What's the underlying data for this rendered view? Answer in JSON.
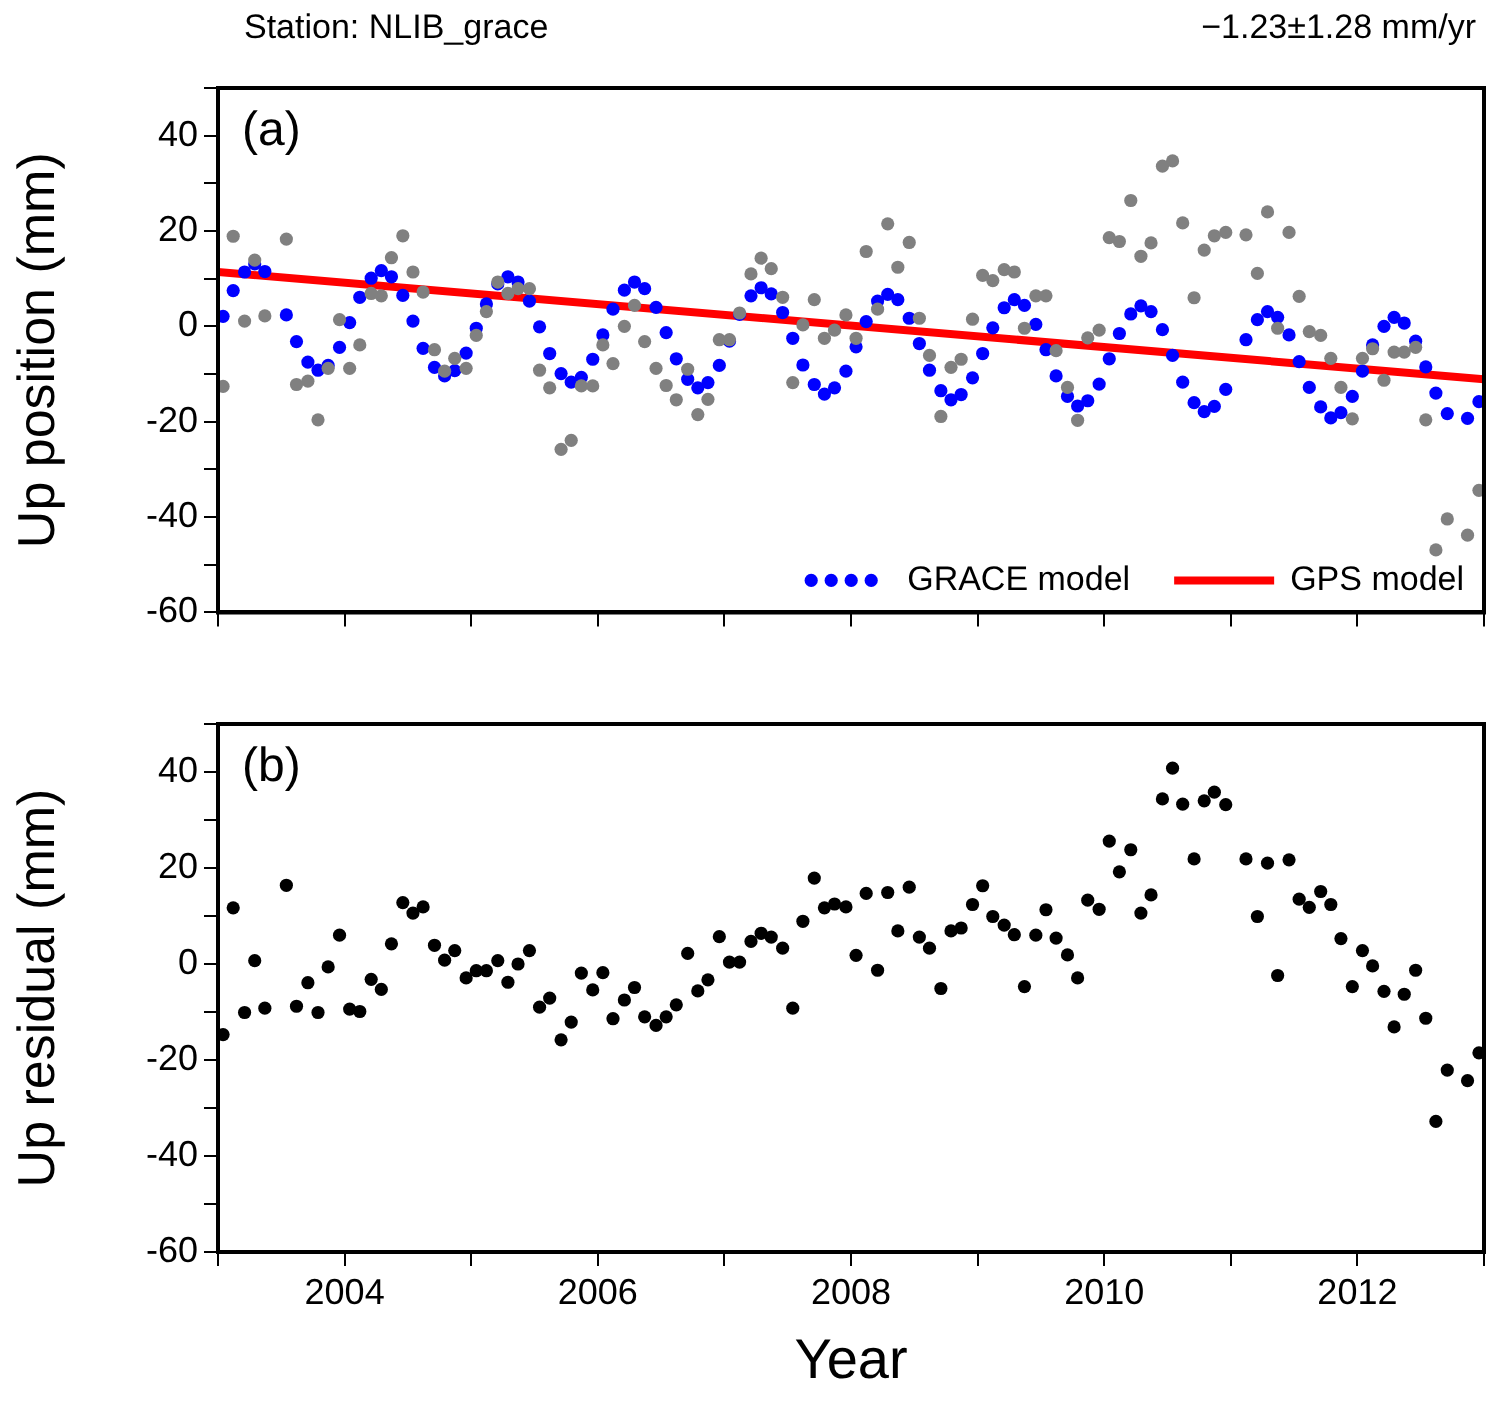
{
  "chart_data": [
    {
      "type": "scatter",
      "title": "Station: NLIB_grace",
      "subtitle": "−1.23±1.28 mm/yr",
      "ylabel": "Up position (mm)",
      "annotations": [
        "(a)"
      ],
      "marker": "circle",
      "legend": "bottom right",
      "tick_labels": "y",
      "xlim": [
        2003,
        2013
      ],
      "xticks": [
        {
          "value": 2003,
          "label": null
        },
        2004,
        {
          "value": 2005,
          "label": null
        },
        2006,
        {
          "value": 2007,
          "label": null
        },
        2008,
        {
          "value": 2009,
          "label": null
        },
        2010,
        {
          "value": 2011,
          "label": null
        },
        2012,
        {
          "value": 2013,
          "label": null
        }
      ],
      "ylim": [
        -60,
        50
      ],
      "yticks": [
        -60,
        {
          "value": -50,
          "label": null
        },
        -40,
        {
          "value": -30,
          "label": null
        },
        -20,
        {
          "value": -10,
          "label": null
        },
        0,
        {
          "value": 10,
          "label": null
        },
        20,
        {
          "value": 30,
          "label": null
        },
        40,
        {
          "value": 50,
          "label": null
        }
      ],
      "x": [
        2003.04,
        2003.12,
        2003.21,
        2003.29,
        2003.37,
        2003.54,
        2003.62,
        2003.71,
        2003.79,
        2003.87,
        2003.96,
        2004.04,
        2004.12,
        2004.21,
        2004.29,
        2004.37,
        2004.46,
        2004.54,
        2004.62,
        2004.71,
        2004.79,
        2004.87,
        2004.96,
        2005.04,
        2005.12,
        2005.21,
        2005.29,
        2005.37,
        2005.46,
        2005.54,
        2005.62,
        2005.71,
        2005.79,
        2005.87,
        2005.96,
        2006.04,
        2006.12,
        2006.21,
        2006.29,
        2006.37,
        2006.46,
        2006.54,
        2006.62,
        2006.71,
        2006.79,
        2006.87,
        2006.96,
        2007.04,
        2007.12,
        2007.21,
        2007.29,
        2007.37,
        2007.46,
        2007.54,
        2007.62,
        2007.71,
        2007.79,
        2007.87,
        2007.96,
        2008.04,
        2008.12,
        2008.21,
        2008.29,
        2008.37,
        2008.46,
        2008.54,
        2008.62,
        2008.71,
        2008.79,
        2008.87,
        2008.96,
        2009.04,
        2009.12,
        2009.21,
        2009.29,
        2009.37,
        2009.46,
        2009.54,
        2009.62,
        2009.71,
        2009.79,
        2009.87,
        2009.96,
        2010.04,
        2010.12,
        2010.21,
        2010.29,
        2010.37,
        2010.46,
        2010.54,
        2010.62,
        2010.71,
        2010.79,
        2010.87,
        2010.96,
        2011.12,
        2011.21,
        2011.29,
        2011.37,
        2011.46,
        2011.54,
        2011.62,
        2011.71,
        2011.79,
        2011.87,
        2011.96,
        2012.04,
        2012.12,
        2012.21,
        2012.29,
        2012.37,
        2012.46,
        2012.54,
        2012.62,
        2012.71,
        2012.87,
        2012.96
      ],
      "series": [
        {
          "color": "#808080",
          "values": [
            -12.6,
            18.9,
            1.1,
            13.9,
            2.2,
            18.3,
            -12.2,
            -11.5,
            -19.6,
            -8.8,
            1.4,
            -8.8,
            -3.9,
            6.9,
            6.4,
            14.4,
            19.0,
            11.4,
            7.2,
            -4.9,
            -9.4,
            -6.7,
            -8.8,
            -1.9,
            3.1,
            9.3,
            6.9,
            7.9,
            7.9,
            -9.2,
            -12.9,
            -25.8,
            -23.9,
            -12.5,
            -12.5,
            -3.9,
            -7.8,
            0,
            4.4,
            -3.2,
            -8.8,
            -12.4,
            -15.4,
            -9.0,
            -18.5,
            -15.3,
            -2.8,
            -2.8,
            2.8,
            11.0,
            14.3,
            12.1,
            6.1,
            -11.8,
            0.3,
            5.6,
            -2.5,
            -0.8,
            2.4,
            -2.5,
            15.7,
            3.6,
            21.5,
            12.4,
            17.6,
            1.7,
            -6.1,
            -18.9,
            -8.6,
            -6.9,
            1.5,
            10.7,
            9.6,
            11.9,
            11.4,
            -0.4,
            6.4,
            6.4,
            -5.1,
            -12.8,
            -19.7,
            -2.4,
            -0.8,
            18.6,
            17.8,
            26.4,
            14.7,
            17.5,
            33.6,
            34.7,
            21.7,
            6.0,
            16.0,
            19.0,
            19.7,
            19.2,
            11.1,
            24.0,
            -0.4,
            19.7,
            6.3,
            -1.1,
            -1.9,
            -6.7,
            -12.8,
            -19.4,
            -6.7,
            -4.7,
            -11.3,
            -5.4,
            -5.4,
            -4.4,
            -19.6,
            -46.9,
            -40.4,
            -43.8,
            -34.4
          ]
        },
        {
          "name": "GRACE model",
          "color": "#0000ff",
          "values": [
            2.1,
            7.5,
            11.4,
            13.1,
            11.5,
            2.4,
            -3.2,
            -7.5,
            -9.2,
            -8.2,
            -4.4,
            0.8,
            6.1,
            10.1,
            11.7,
            10.4,
            6.5,
            1.1,
            -4.6,
            -8.6,
            -10.4,
            -9.3,
            -5.6,
            -0.4,
            4.7,
            8.9,
            10.4,
            9.3,
            5.3,
            -0.1,
            -5.7,
            -9.9,
            -11.7,
            -10.7,
            -6.9,
            -1.8,
            3.6,
            7.6,
            9.3,
            7.9,
            4.0,
            -1.3,
            -6.8,
            -11.1,
            -12.9,
            -11.8,
            -8.2,
            -3.1,
            2.5,
            6.4,
            8.1,
            6.8,
            2.9,
            -2.5,
            -8.1,
            -12.2,
            -14.2,
            -12.9,
            -9.4,
            -4.3,
            1.0,
            5.3,
            6.7,
            5.6,
            1.7,
            -3.6,
            -9.2,
            -13.5,
            -15.4,
            -14.3,
            -10.8,
            -5.7,
            -0.3,
            3.9,
            5.6,
            4.4,
            0.4,
            -4.9,
            -10.4,
            -14.7,
            -16.7,
            -15.6,
            -12.1,
            -6.8,
            -1.5,
            2.6,
            4.3,
            3.1,
            -0.7,
            -6.1,
            -11.7,
            -16.0,
            -17.9,
            -16.8,
            -13.2,
            -2.8,
            1.4,
            3.1,
            1.9,
            -1.8,
            -7.4,
            -12.8,
            -16.9,
            -19.2,
            -18.1,
            -14.7,
            -9.4,
            -3.9,
            0,
            1.9,
            0.7,
            -3.1,
            -8.5,
            -14.0,
            -18.3,
            -19.3,
            -15.8
          ]
        },
        {
          "name": "GPS model",
          "type": "line",
          "marker": "none",
          "line_style": "solid",
          "color": "#ff0000",
          "x": [
            2003,
            2013
          ],
          "values": [
            11.4,
            -11.1
          ]
        }
      ]
    },
    {
      "type": "scatter",
      "xlabel": "Year",
      "ylabel": "Up residual (mm)",
      "annotations": [
        "(b)"
      ],
      "marker": "circle",
      "xlim": [
        2003,
        2013
      ],
      "xticks": [
        {
          "value": 2003,
          "label": null
        },
        2004,
        {
          "value": 2005,
          "label": null
        },
        2006,
        {
          "value": 2007,
          "label": null
        },
        2008,
        {
          "value": 2009,
          "label": null
        },
        2010,
        {
          "value": 2011,
          "label": null
        },
        2012,
        {
          "value": 2013,
          "label": null
        }
      ],
      "ylim": [
        -60,
        50
      ],
      "yticks": [
        -60,
        {
          "value": -50,
          "label": null
        },
        -40,
        {
          "value": -30,
          "label": null
        },
        -20,
        {
          "value": -10,
          "label": null
        },
        0,
        {
          "value": 10,
          "label": null
        },
        20,
        {
          "value": 30,
          "label": null
        },
        40,
        {
          "value": 50,
          "label": null
        }
      ],
      "x": [
        2003.04,
        2003.12,
        2003.21,
        2003.29,
        2003.37,
        2003.54,
        2003.62,
        2003.71,
        2003.79,
        2003.87,
        2003.96,
        2004.04,
        2004.12,
        2004.21,
        2004.29,
        2004.37,
        2004.46,
        2004.54,
        2004.62,
        2004.71,
        2004.79,
        2004.87,
        2004.96,
        2005.04,
        2005.12,
        2005.21,
        2005.29,
        2005.37,
        2005.46,
        2005.54,
        2005.62,
        2005.71,
        2005.79,
        2005.87,
        2005.96,
        2006.04,
        2006.12,
        2006.21,
        2006.29,
        2006.37,
        2006.46,
        2006.54,
        2006.62,
        2006.71,
        2006.79,
        2006.87,
        2006.96,
        2007.04,
        2007.12,
        2007.21,
        2007.29,
        2007.37,
        2007.46,
        2007.54,
        2007.62,
        2007.71,
        2007.79,
        2007.87,
        2007.96,
        2008.04,
        2008.12,
        2008.21,
        2008.29,
        2008.37,
        2008.46,
        2008.54,
        2008.62,
        2008.71,
        2008.79,
        2008.87,
        2008.96,
        2009.04,
        2009.12,
        2009.21,
        2009.29,
        2009.37,
        2009.46,
        2009.54,
        2009.62,
        2009.71,
        2009.79,
        2009.87,
        2009.96,
        2010.04,
        2010.12,
        2010.21,
        2010.29,
        2010.37,
        2010.46,
        2010.54,
        2010.62,
        2010.71,
        2010.79,
        2010.87,
        2010.96,
        2011.12,
        2011.21,
        2011.29,
        2011.37,
        2011.46,
        2011.54,
        2011.62,
        2011.71,
        2011.79,
        2011.87,
        2011.96,
        2012.04,
        2012.12,
        2012.21,
        2012.29,
        2012.37,
        2012.46,
        2012.54,
        2012.62,
        2012.71,
        2012.87,
        2012.96
      ],
      "series": [
        {
          "color": "#000000",
          "values": [
            -14.7,
            11.7,
            -10.1,
            0.7,
            -9.2,
            16.4,
            -8.8,
            -3.9,
            -10.1,
            -0.6,
            6.0,
            -9.4,
            -9.9,
            -3.2,
            -5.3,
            4.2,
            12.8,
            10.6,
            11.9,
            3.9,
            0.8,
            2.8,
            -2.9,
            -1.4,
            -1.4,
            0.7,
            -3.8,
            0,
            2.8,
            -9.0,
            -7.1,
            -15.8,
            -12.1,
            -1.9,
            -5.4,
            -1.8,
            -11.4,
            -7.5,
            -4.9,
            -11.0,
            -12.8,
            -11.0,
            -8.5,
            2.2,
            -5.6,
            -3.3,
            5.7,
            0.4,
            0.4,
            4.7,
            6.4,
            5.6,
            3.3,
            -9.2,
            8.9,
            17.9,
            11.7,
            12.5,
            11.9,
            1.8,
            14.7,
            -1.3,
            14.9,
            6.9,
            16.0,
            5.6,
            3.3,
            -5.1,
            6.9,
            7.5,
            12.4,
            16.3,
            9.9,
            8.1,
            6.1,
            -4.7,
            6.0,
            11.3,
            5.4,
            1.9,
            -2.9,
            13.3,
            11.4,
            25.6,
            19.2,
            23.8,
            10.6,
            14.4,
            34.4,
            40.8,
            33.3,
            21.9,
            34.0,
            35.8,
            33.2,
            21.9,
            9.9,
            21.0,
            -2.4,
            21.7,
            13.5,
            11.8,
            15.1,
            12.4,
            5.3,
            -4.7,
            2.8,
            -0.4,
            -5.7,
            -13.1,
            -6.3,
            -1.3,
            -11.3,
            -32.8,
            -22.1,
            -24.3,
            -18.5
          ]
        }
      ]
    }
  ]
}
